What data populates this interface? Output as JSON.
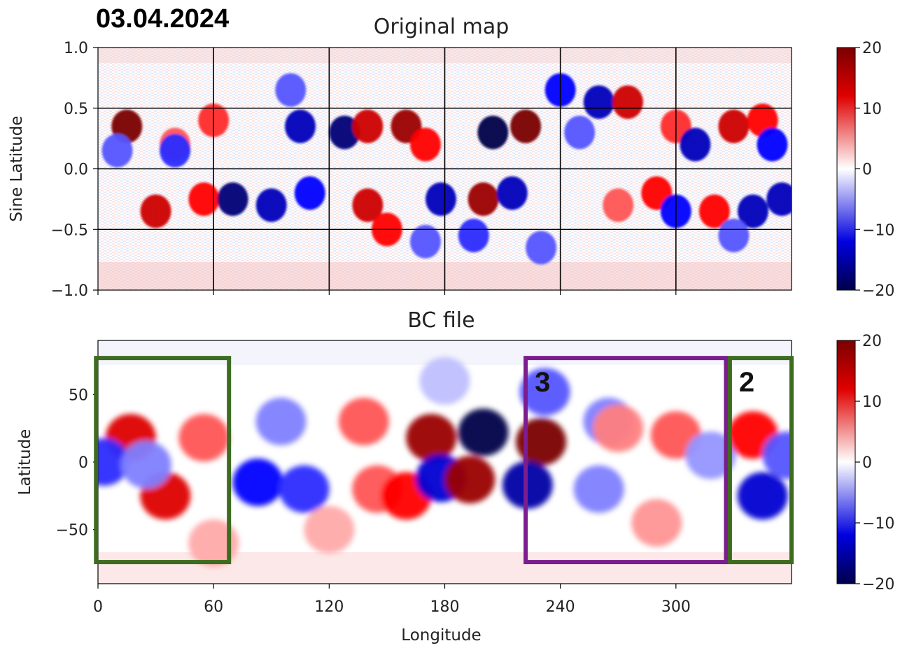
{
  "date_label": "03.04.2024",
  "colors": {
    "neg": "#00004a",
    "mid": "#ffffff",
    "pos": "#7a0000",
    "box_green": "#3d6b1f",
    "box_purple": "#7b1d8e"
  },
  "chart_data": [
    {
      "type": "heatmap",
      "title": "Original map",
      "xlabel": "",
      "ylabel": "Sine Latitude",
      "xlim": [
        0,
        360
      ],
      "ylim": [
        -1.0,
        1.0
      ],
      "xticks": [
        0,
        60,
        120,
        180,
        240,
        300
      ],
      "yticks": [
        -1.0,
        -0.5,
        0.0,
        0.5,
        1.0
      ],
      "ytick_labels": [
        "−1.0",
        "−0.5",
        "0.0",
        "0.5",
        "1.0"
      ],
      "grid": true,
      "colorbar": {
        "ticks": [
          20,
          10,
          0,
          -10,
          -20
        ],
        "tick_labels": [
          "20",
          "10",
          "0",
          "−10",
          "−20"
        ],
        "range": [
          -20,
          20
        ]
      },
      "blobs": [
        {
          "x": 15,
          "y": 0.35,
          "v": 20
        },
        {
          "x": 40,
          "y": 0.2,
          "v": 8
        },
        {
          "x": 60,
          "y": 0.4,
          "v": 10
        },
        {
          "x": 10,
          "y": 0.15,
          "v": -8
        },
        {
          "x": 40,
          "y": 0.15,
          "v": -10
        },
        {
          "x": 30,
          "y": -0.35,
          "v": 15
        },
        {
          "x": 55,
          "y": -0.25,
          "v": 12
        },
        {
          "x": 70,
          "y": -0.25,
          "v": -18
        },
        {
          "x": 90,
          "y": -0.3,
          "v": -15
        },
        {
          "x": 110,
          "y": -0.2,
          "v": -12
        },
        {
          "x": 105,
          "y": 0.35,
          "v": -15
        },
        {
          "x": 128,
          "y": 0.3,
          "v": -18
        },
        {
          "x": 140,
          "y": 0.35,
          "v": 15
        },
        {
          "x": 160,
          "y": 0.35,
          "v": 18
        },
        {
          "x": 170,
          "y": 0.2,
          "v": 12
        },
        {
          "x": 205,
          "y": 0.3,
          "v": -20
        },
        {
          "x": 222,
          "y": 0.35,
          "v": 20
        },
        {
          "x": 140,
          "y": -0.3,
          "v": 15
        },
        {
          "x": 150,
          "y": -0.5,
          "v": 12
        },
        {
          "x": 178,
          "y": -0.25,
          "v": -15
        },
        {
          "x": 200,
          "y": -0.25,
          "v": 18
        },
        {
          "x": 215,
          "y": -0.2,
          "v": -15
        },
        {
          "x": 195,
          "y": -0.55,
          "v": -10
        },
        {
          "x": 250,
          "y": 0.3,
          "v": -8
        },
        {
          "x": 260,
          "y": 0.55,
          "v": -15
        },
        {
          "x": 275,
          "y": 0.55,
          "v": 15
        },
        {
          "x": 300,
          "y": 0.35,
          "v": 10
        },
        {
          "x": 310,
          "y": 0.2,
          "v": -15
        },
        {
          "x": 330,
          "y": 0.35,
          "v": 15
        },
        {
          "x": 345,
          "y": 0.4,
          "v": 12
        },
        {
          "x": 350,
          "y": 0.2,
          "v": -12
        },
        {
          "x": 290,
          "y": -0.2,
          "v": 12
        },
        {
          "x": 300,
          "y": -0.35,
          "v": -12
        },
        {
          "x": 320,
          "y": -0.35,
          "v": 12
        },
        {
          "x": 340,
          "y": -0.35,
          "v": -15
        },
        {
          "x": 355,
          "y": -0.25,
          "v": -15
        },
        {
          "x": 270,
          "y": -0.3,
          "v": 8
        },
        {
          "x": 330,
          "y": -0.55,
          "v": -8
        },
        {
          "x": 100,
          "y": 0.65,
          "v": -8
        },
        {
          "x": 240,
          "y": 0.65,
          "v": -12
        },
        {
          "x": 170,
          "y": -0.6,
          "v": -8
        },
        {
          "x": 230,
          "y": -0.65,
          "v": -8
        }
      ]
    },
    {
      "type": "heatmap",
      "title": "BC file",
      "xlabel": "Longitude",
      "ylabel": "Latitude",
      "xlim": [
        0,
        360
      ],
      "ylim": [
        -90,
        90
      ],
      "xticks": [
        0,
        60,
        120,
        180,
        240,
        300
      ],
      "yticks": [
        -50,
        0,
        50
      ],
      "ytick_labels": [
        "−50",
        "0",
        "50"
      ],
      "grid": false,
      "colorbar": {
        "ticks": [
          20,
          10,
          0,
          -10,
          -20
        ],
        "tick_labels": [
          "20",
          "10",
          "0",
          "−10",
          "−20"
        ],
        "range": [
          -20,
          20
        ]
      },
      "blobs": [
        {
          "x": 17,
          "y": 18,
          "v": 14
        },
        {
          "x": 55,
          "y": 18,
          "v": 8
        },
        {
          "x": 35,
          "y": -25,
          "v": 14
        },
        {
          "x": 3,
          "y": 0,
          "v": -10
        },
        {
          "x": 25,
          "y": -2,
          "v": -6
        },
        {
          "x": 83,
          "y": -15,
          "v": -12
        },
        {
          "x": 107,
          "y": -20,
          "v": -10
        },
        {
          "x": 95,
          "y": 30,
          "v": -6
        },
        {
          "x": 138,
          "y": 30,
          "v": 8
        },
        {
          "x": 145,
          "y": -20,
          "v": 8
        },
        {
          "x": 160,
          "y": -25,
          "v": 12
        },
        {
          "x": 173,
          "y": 18,
          "v": 18
        },
        {
          "x": 178,
          "y": -12,
          "v": -14
        },
        {
          "x": 200,
          "y": 22,
          "v": -20
        },
        {
          "x": 193,
          "y": -13,
          "v": 18
        },
        {
          "x": 230,
          "y": 15,
          "v": 20
        },
        {
          "x": 223,
          "y": -17,
          "v": -16
        },
        {
          "x": 232,
          "y": 52,
          "v": -8
        },
        {
          "x": 265,
          "y": 30,
          "v": -6
        },
        {
          "x": 270,
          "y": 25,
          "v": 6
        },
        {
          "x": 260,
          "y": -20,
          "v": -6
        },
        {
          "x": 290,
          "y": -45,
          "v": 5
        },
        {
          "x": 300,
          "y": 20,
          "v": 8
        },
        {
          "x": 318,
          "y": 5,
          "v": -5
        },
        {
          "x": 340,
          "y": 20,
          "v": 12
        },
        {
          "x": 345,
          "y": -25,
          "v": -14
        },
        {
          "x": 358,
          "y": 5,
          "v": -8
        },
        {
          "x": 120,
          "y": -50,
          "v": 4
        },
        {
          "x": 180,
          "y": 60,
          "v": -3
        },
        {
          "x": 60,
          "y": -60,
          "v": 4
        }
      ],
      "annotations": [
        {
          "label": "",
          "x0": -1,
          "x1": 68,
          "y0": -74,
          "y1": 77,
          "color": "green"
        },
        {
          "label": "3",
          "x0": 222,
          "x1": 326,
          "y0": -74,
          "y1": 77,
          "color": "purple"
        },
        {
          "label": "2",
          "x0": 328,
          "x1": 360,
          "y0": -74,
          "y1": 77,
          "color": "green"
        }
      ]
    }
  ]
}
